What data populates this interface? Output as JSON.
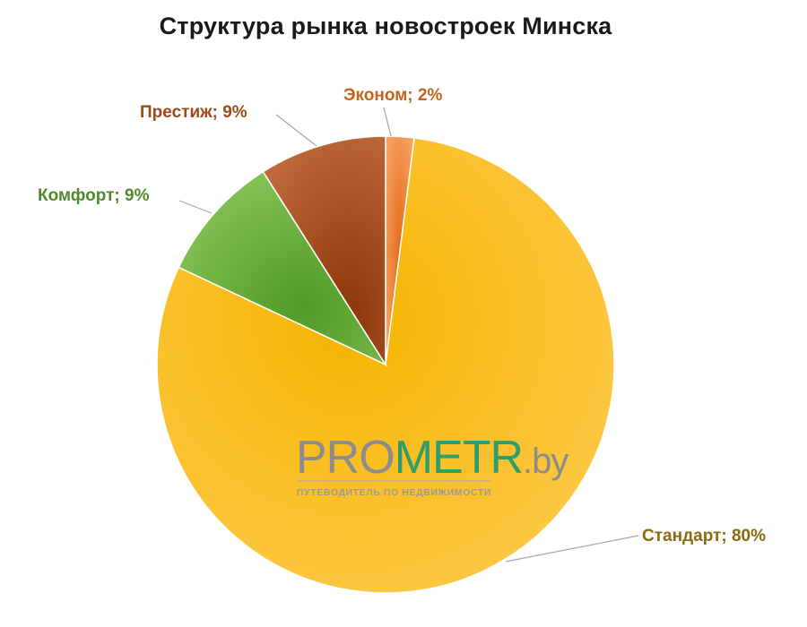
{
  "chart_data": {
    "type": "pie",
    "title": "Структура рынка новостроек Минска",
    "slices": [
      {
        "name": "Эконом",
        "value": 2,
        "label": "Эконом; 2%",
        "color": "#f48b3c",
        "label_color": "#c5641e"
      },
      {
        "name": "Стандарт",
        "value": 80,
        "label": "Стандарт; 80%",
        "color": "#fbbf1b",
        "label_color": "#8a6a0a"
      },
      {
        "name": "Комфорт",
        "value": 9,
        "label": "Комфорт; 9%",
        "color": "#6cae3c",
        "label_color": "#4f8a2a"
      },
      {
        "name": "Престиж",
        "value": 9,
        "label": "Престиж; 9%",
        "color": "#a74a14",
        "label_color": "#9c4a1a"
      }
    ],
    "legend": "none"
  },
  "watermark": {
    "brand_pro": "PRO",
    "brand_metr": "METR",
    "brand_tld": ".by",
    "tagline": "ПУТЕВОДИТЕЛЬ ПО НЕДВИЖИМОСТИ",
    "color_gray": "#8c8c8c",
    "color_green": "#2f9e6a"
  }
}
